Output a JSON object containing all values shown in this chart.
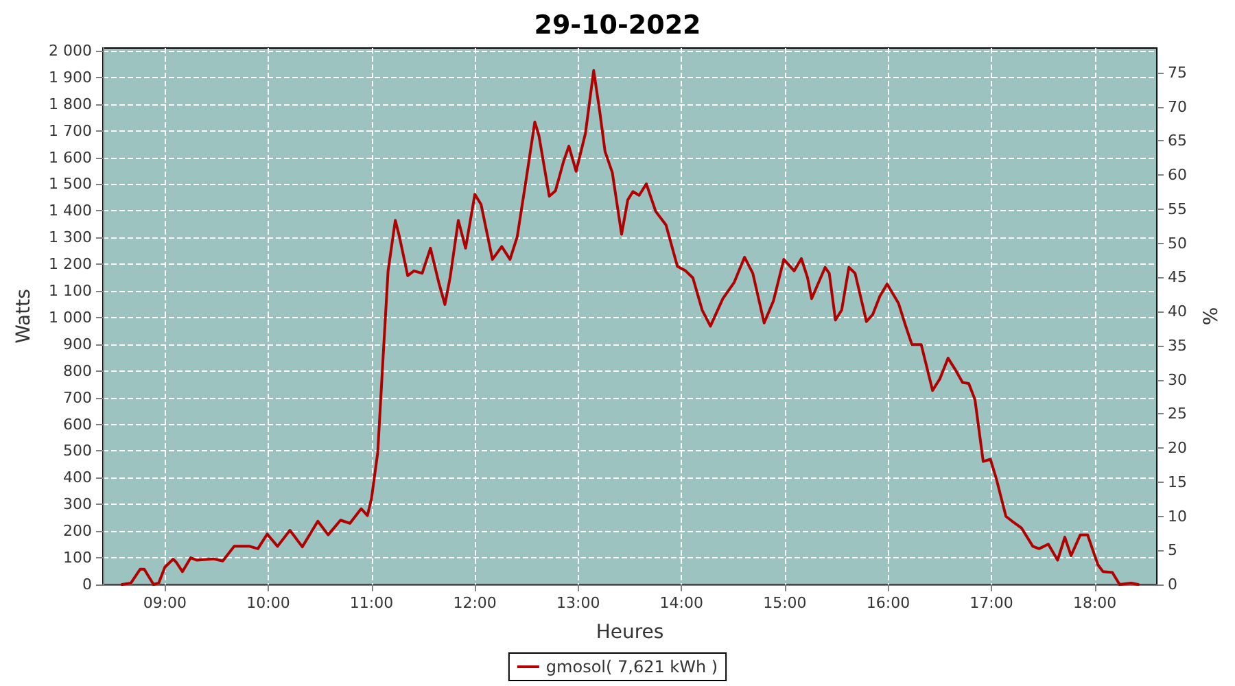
{
  "chart_data": {
    "type": "line",
    "title": "29-10-2022",
    "xlabel": "Heures",
    "ylabel": "Watts",
    "y2label": "%",
    "xlim": [
      8.4,
      18.6
    ],
    "xticks": [
      {
        "value": 9,
        "label": "09:00"
      },
      {
        "value": 10,
        "label": "10:00"
      },
      {
        "value": 11,
        "label": "11:00"
      },
      {
        "value": 12,
        "label": "12:00"
      },
      {
        "value": 13,
        "label": "13:00"
      },
      {
        "value": 14,
        "label": "14:00"
      },
      {
        "value": 15,
        "label": "15:00"
      },
      {
        "value": 16,
        "label": "16:00"
      },
      {
        "value": 17,
        "label": "17:00"
      },
      {
        "value": 18,
        "label": "18:00"
      }
    ],
    "ylim": [
      0,
      2010
    ],
    "yticks": [
      0,
      100,
      200,
      300,
      400,
      500,
      600,
      700,
      800,
      900,
      {
        "value": 1000,
        "label": "1 000"
      },
      {
        "value": 1100,
        "label": "1 100"
      },
      {
        "value": 1200,
        "label": "1 200"
      },
      {
        "value": 1300,
        "label": "1 300"
      },
      {
        "value": 1400,
        "label": "1 400"
      },
      {
        "value": 1500,
        "label": "1 500"
      },
      {
        "value": 1600,
        "label": "1 600"
      },
      {
        "value": 1700,
        "label": "1 700"
      },
      {
        "value": 1800,
        "label": "1 800"
      },
      {
        "value": 1900,
        "label": "1 900"
      },
      {
        "value": 2000,
        "label": "2 000"
      }
    ],
    "y2lim": [
      0,
      78.6
    ],
    "y2ticks": [
      0,
      5,
      10,
      15,
      20,
      25,
      30,
      35,
      40,
      45,
      50,
      55,
      60,
      65,
      70,
      75
    ],
    "grid": true,
    "legend": "bottom",
    "marker": "none",
    "line_style": "solid",
    "series": [
      {
        "name": "gmosol( 7,621 kWh )",
        "color": "#b00000",
        "x": [
          8.585,
          8.67,
          8.76,
          8.8,
          8.89,
          8.94,
          9.0,
          9.08,
          9.11,
          9.17,
          9.25,
          9.31,
          9.47,
          9.56,
          9.67,
          9.82,
          9.9,
          9.99,
          10.09,
          10.21,
          10.33,
          10.48,
          10.58,
          10.7,
          10.79,
          10.9,
          10.96,
          11.0,
          11.06,
          11.11,
          11.16,
          11.23,
          11.27,
          11.35,
          11.41,
          11.49,
          11.57,
          11.65,
          11.71,
          11.76,
          11.84,
          11.91,
          12.0,
          12.06,
          12.17,
          12.26,
          12.34,
          12.41,
          12.5,
          12.58,
          12.62,
          12.72,
          12.78,
          12.86,
          12.91,
          12.98,
          13.07,
          13.15,
          13.21,
          13.26,
          13.33,
          13.42,
          13.48,
          13.53,
          13.59,
          13.66,
          13.75,
          13.85,
          13.96,
          14.04,
          14.11,
          14.2,
          14.28,
          14.4,
          14.51,
          14.61,
          14.69,
          14.8,
          14.89,
          14.99,
          15.09,
          15.16,
          15.22,
          15.26,
          15.39,
          15.43,
          15.49,
          15.55,
          15.62,
          15.68,
          15.79,
          15.85,
          15.92,
          15.99,
          16.1,
          16.17,
          16.23,
          16.32,
          16.43,
          16.5,
          16.58,
          16.65,
          16.72,
          16.78,
          16.84,
          16.92,
          16.99,
          17.05,
          17.14,
          17.2,
          17.29,
          17.4,
          17.46,
          17.55,
          17.64,
          17.71,
          17.77,
          17.86,
          17.93,
          18.03,
          18.08,
          18.17,
          18.24,
          18.35,
          18.42
        ],
        "values": [
          0,
          5,
          57,
          57,
          0,
          5,
          65,
          95,
          83,
          48,
          100,
          91,
          96,
          88,
          143,
          143,
          134,
          189,
          143,
          203,
          141,
          237,
          186,
          241,
          229,
          284,
          258,
          323,
          495,
          839,
          1175,
          1364,
          1303,
          1157,
          1175,
          1166,
          1260,
          1132,
          1049,
          1149,
          1364,
          1260,
          1462,
          1424,
          1218,
          1266,
          1218,
          1303,
          1527,
          1733,
          1682,
          1455,
          1475,
          1587,
          1642,
          1548,
          1690,
          1926,
          1768,
          1622,
          1544,
          1312,
          1441,
          1472,
          1458,
          1501,
          1398,
          1347,
          1192,
          1175,
          1149,
          1028,
          968,
          1071,
          1132,
          1226,
          1166,
          980,
          1063,
          1218,
          1175,
          1221,
          1149,
          1071,
          1188,
          1166,
          991,
          1028,
          1188,
          1166,
          985,
          1011,
          1080,
          1126,
          1054,
          968,
          899,
          899,
          727,
          770,
          848,
          805,
          757,
          753,
          693,
          461,
          469,
          392,
          255,
          237,
          212,
          143,
          134,
          151,
          91,
          177,
          108,
          186,
          186,
          74,
          48,
          45,
          0,
          5,
          0
        ]
      }
    ]
  }
}
